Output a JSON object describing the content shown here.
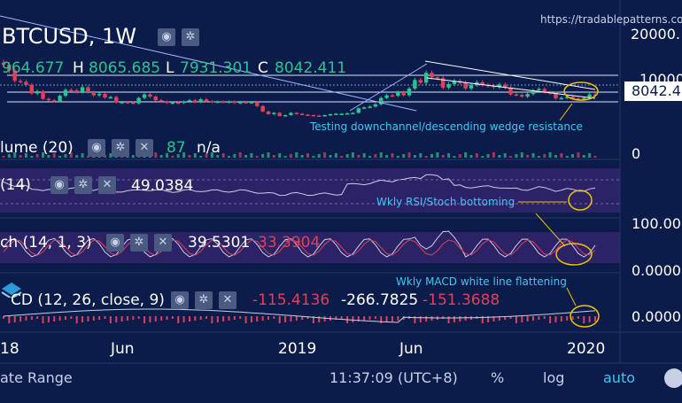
{
  "symbol": "BTCUSD, 1W",
  "watermark": "https://tradablepatterns.com",
  "ohlc": {
    "o_label": "",
    "o_value": "964.677",
    "h_label": "H",
    "h_value": "8065.685",
    "l_label": "L",
    "l_value": "7931.301",
    "c_label": "C",
    "c_value": "8042.411"
  },
  "price_scale": {
    "top": "20000.",
    "mid": "10000",
    "last": "8042.4",
    "vol_zero": "0"
  },
  "annotations": {
    "wedge": "Testing downchannel/descending wedge resistance",
    "rsi": "Wkly RSI/Stoch bottoming",
    "macd": "Wkly MACD white line flattening"
  },
  "volume": {
    "label": "lume (20)",
    "value": "87",
    "value2": "n/a"
  },
  "rsi": {
    "label": "(14)",
    "value": "49.0384",
    "scale": "100.00"
  },
  "stoch": {
    "label": "ch (14, 1, 3)",
    "k": "39.5301",
    "d": "33.3904",
    "scale": "0.0000"
  },
  "macd": {
    "label": "CD (12, 26, close, 9)",
    "v1": "-115.4136",
    "v2": "-266.7825",
    "v3": "-151.3688",
    "scale": "0.0000"
  },
  "time_axis": [
    "18",
    "Jun",
    "2019",
    "Jun",
    "2020"
  ],
  "bottom_bar": {
    "range": "ate Range",
    "time": "11:37:09 (UTC+8)",
    "pct": "%",
    "log": "log",
    "auto": "auto"
  },
  "icons": [
    "eye-icon",
    "gear-icon",
    "close-icon"
  ],
  "colors": {
    "bg": "#0c1c4a",
    "up": "#2ec28f",
    "down": "#e0405a",
    "annotation": "#3ec7f0",
    "circle": "#f2c200",
    "signal": "#e0405a",
    "line": "#c8cfe6"
  },
  "chart_data": {
    "type": "candlestick",
    "title": "BTCUSD, 1W",
    "price_weekly": [
      14800,
      13500,
      11200,
      11000,
      10300,
      8400,
      8900,
      7200,
      6900,
      6700,
      7900,
      9200,
      9100,
      8700,
      9800,
      8700,
      8000,
      8300,
      7500,
      7600,
      6400,
      6500,
      6400,
      6200,
      7400,
      8200,
      7700,
      6900,
      6600,
      6300,
      6400,
      6300,
      6600,
      6900,
      6500,
      7100,
      6700,
      6500,
      6600,
      6500,
      6600,
      6300,
      6500,
      6400,
      6500,
      5600,
      4400,
      3800,
      4100,
      3400,
      3600,
      4100,
      3900,
      3700,
      3600,
      3500,
      3400,
      3600,
      3800,
      3900,
      3900,
      4000,
      4100,
      5100,
      5300,
      5500,
      6000,
      7400,
      8000,
      7900,
      8700,
      8000,
      9500,
      11400,
      10800,
      13000,
      12000,
      11800,
      9700,
      10500,
      11200,
      10800,
      9500,
      10300,
      10900,
      10300,
      10100,
      9800,
      10400,
      9700,
      8200,
      8100,
      7700,
      8300,
      9100,
      9400,
      8700,
      8500,
      7300,
      7400,
      7700,
      7300,
      7150,
      7400,
      8200,
      8042.411
    ],
    "ohlc_last": {
      "open": 964.677,
      "high": 8065.685,
      "low": 7931.301,
      "close": 8042.411
    },
    "rsi": {
      "length": 14,
      "value": 49.0384
    },
    "stoch": {
      "k": 39.5301,
      "d": 33.3904
    },
    "macd": {
      "params": "12, 26, close, 9",
      "values": [
        -115.4136,
        -266.7825,
        -151.3688
      ]
    },
    "volume": {
      "length": 20,
      "value": 87
    }
  }
}
